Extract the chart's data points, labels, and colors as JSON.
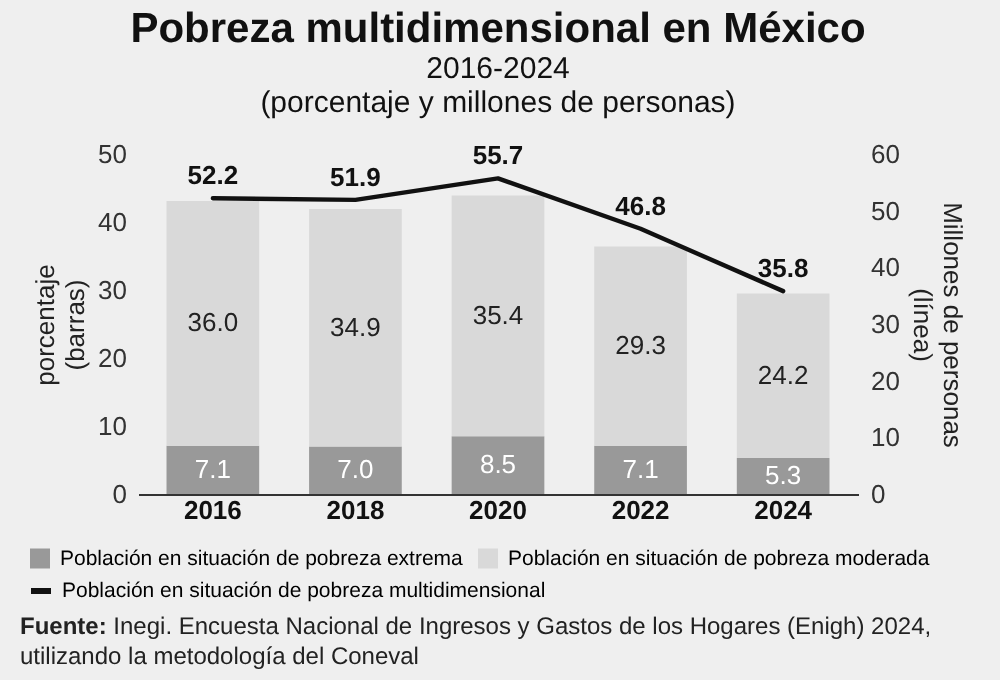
{
  "chart_data": {
    "type": "bar",
    "title": "Pobreza multidimensional en México",
    "subtitle": "2016-2024\n(porcentaje y millones de personas)",
    "ylabel": "porcentaje\n(barras)",
    "y2label": "Millones de personas\n(línea)",
    "categories": [
      "2016",
      "2018",
      "2020",
      "2022",
      "2024"
    ],
    "stacked": true,
    "series": [
      {
        "name": "Población en situación de pobreza extrema",
        "color": "#999999",
        "values": [
          7.1,
          7.0,
          8.5,
          7.1,
          5.3
        ],
        "value_labels": [
          "7.1",
          "7.0",
          "8.5",
          "7.1",
          "5.3"
        ]
      },
      {
        "name": "Población en situación de pobreza moderada",
        "color": "#d9d9d9",
        "values": [
          36.0,
          34.9,
          35.4,
          29.3,
          24.2
        ],
        "value_labels": [
          "36.0",
          "34.9",
          "35.4",
          "29.3",
          "24.2"
        ]
      },
      {
        "type": "line",
        "axis": "y2",
        "name": "Población en situación de pobreza multidimensional",
        "color": "#111111",
        "values": [
          52.2,
          51.9,
          55.7,
          46.8,
          35.8
        ],
        "value_labels": [
          "52.2",
          "51.9",
          "55.7",
          "46.8",
          "35.8"
        ]
      }
    ],
    "ylim": [
      0,
      50
    ],
    "yticks": [
      0,
      10,
      20,
      30,
      40,
      50
    ],
    "y2lim": [
      0,
      60
    ],
    "y2ticks": [
      0,
      10,
      20,
      30,
      40,
      50,
      60
    ],
    "grid": false,
    "legend": "bottom",
    "marker": "none",
    "line_style": "solid",
    "annotations": [
      "Fuente: Inegi. Encuesta Nacional de Ingresos y Gastos de los Hogares (Enigh) 2024, utilizando la metodología del Coneval"
    ]
  }
}
